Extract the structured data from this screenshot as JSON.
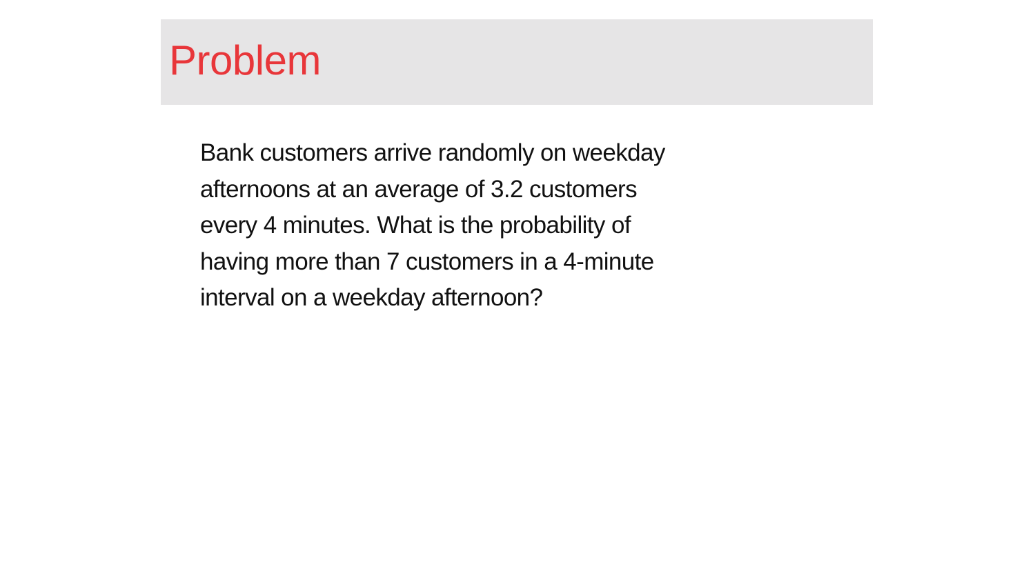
{
  "slide": {
    "title": "Problem",
    "body_lines": [
      "Bank customers arrive randomly on weekday",
      "afternoons at an average of 3.2 customers",
      "every 4 minutes. What is the probability of",
      "having more than 7 customers in a 4-minute",
      "interval on a weekday afternoon?"
    ]
  },
  "colors": {
    "title": "#e8363a",
    "title_band": "#e6e5e6",
    "body_text": "#111111",
    "background": "#ffffff"
  }
}
